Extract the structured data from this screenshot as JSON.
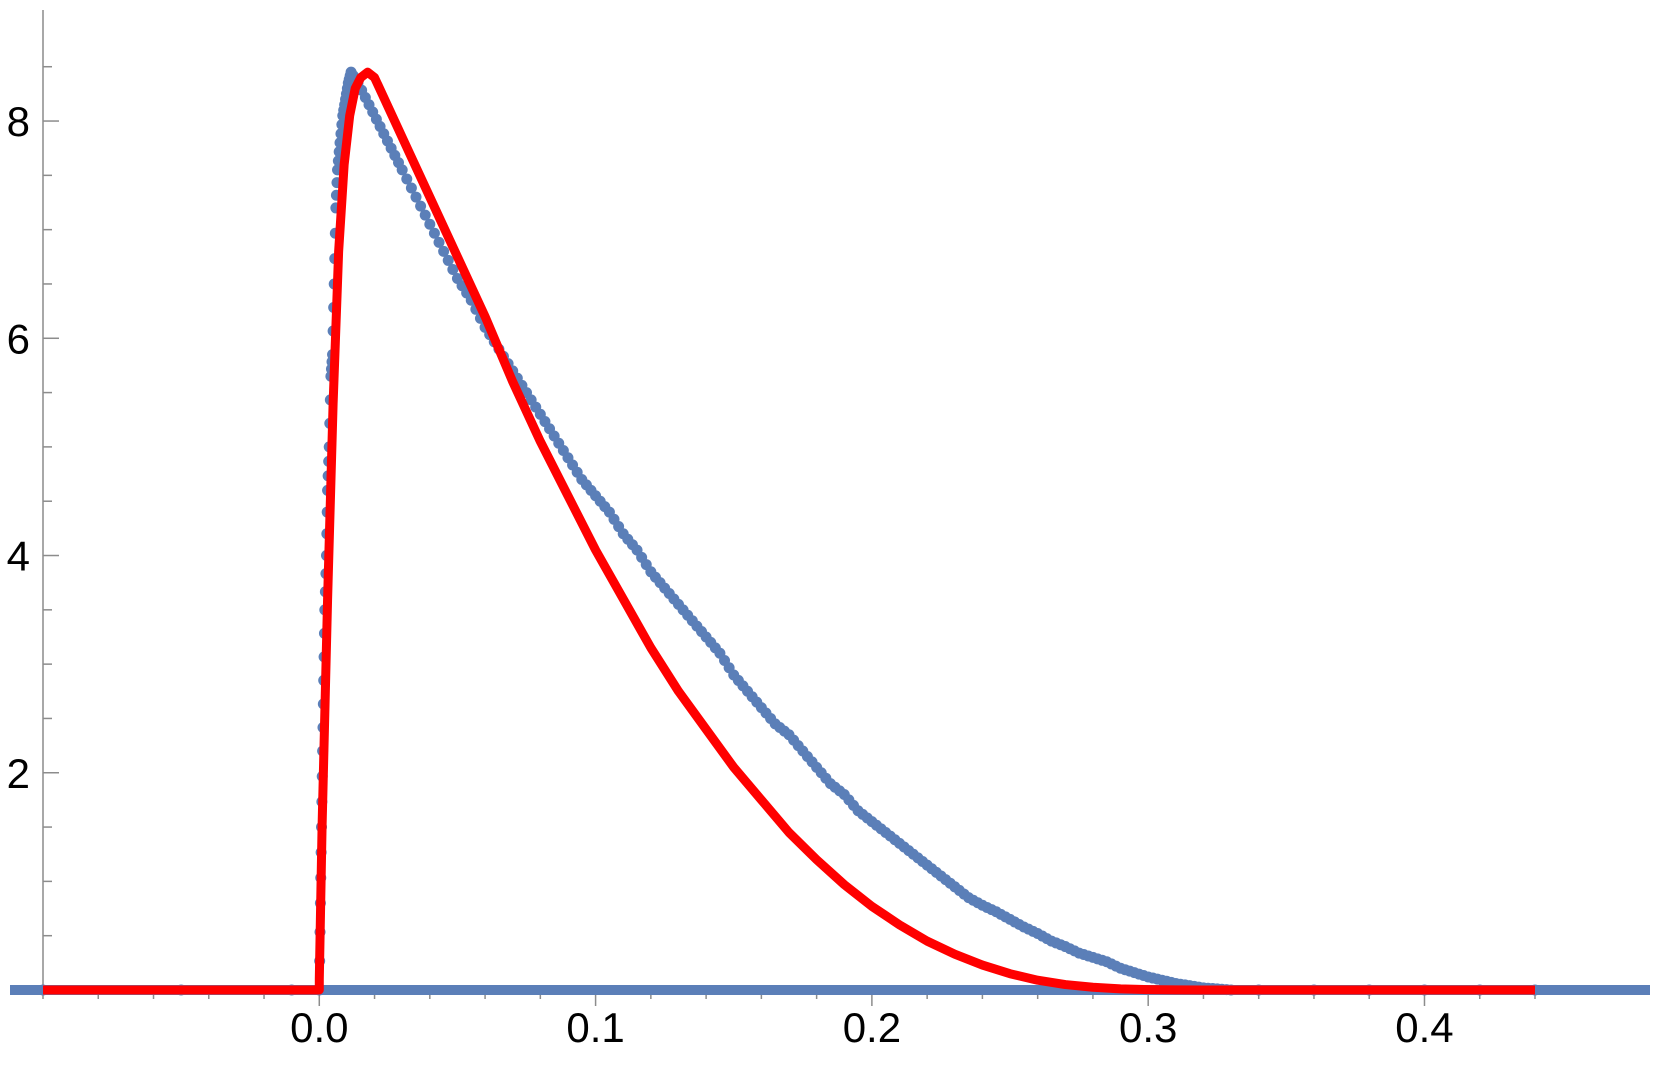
{
  "chart_data": {
    "type": "scatter",
    "title": "",
    "xlabel": "",
    "ylabel": "",
    "xlim": [
      -0.1,
      0.44
    ],
    "ylim": [
      0,
      8.7
    ],
    "x_major_ticks": [
      0.0,
      0.1,
      0.2,
      0.3,
      0.4
    ],
    "x_tick_labels": [
      "0.0",
      "0.1",
      "0.2",
      "0.3",
      "0.4"
    ],
    "y_major_ticks": [
      2,
      4,
      6,
      8
    ],
    "y_tick_labels": [
      "2",
      "4",
      "6",
      "8"
    ],
    "grid": false,
    "legend": "none",
    "colors": {
      "points": "#5b7fb8",
      "curve": "#ff0000"
    },
    "series": [
      {
        "kind": "scatter",
        "points": [
          [
            -0.1,
            0
          ],
          [
            -0.05,
            0
          ],
          [
            -0.01,
            0
          ],
          [
            0.0,
            0
          ],
          [
            0.0004,
            0.8
          ],
          [
            0.0008,
            1.5
          ],
          [
            0.0012,
            2.2
          ],
          [
            0.0016,
            2.85
          ],
          [
            0.002,
            3.5
          ],
          [
            0.0026,
            4.0
          ],
          [
            0.003,
            4.6
          ],
          [
            0.0036,
            5.0
          ],
          [
            0.0042,
            5.65
          ],
          [
            0.0048,
            5.85
          ],
          [
            0.0054,
            6.5
          ],
          [
            0.006,
            7.2
          ],
          [
            0.0066,
            7.55
          ],
          [
            0.0075,
            7.8
          ],
          [
            0.0085,
            8.05
          ],
          [
            0.0095,
            8.2
          ],
          [
            0.0105,
            8.35
          ],
          [
            0.0115,
            8.45
          ],
          [
            0.014,
            8.35
          ],
          [
            0.018,
            8.15
          ],
          [
            0.022,
            7.95
          ],
          [
            0.026,
            7.75
          ],
          [
            0.03,
            7.55
          ],
          [
            0.035,
            7.3
          ],
          [
            0.04,
            7.05
          ],
          [
            0.045,
            6.8
          ],
          [
            0.05,
            6.55
          ],
          [
            0.055,
            6.35
          ],
          [
            0.06,
            6.1
          ],
          [
            0.065,
            5.9
          ],
          [
            0.07,
            5.7
          ],
          [
            0.075,
            5.5
          ],
          [
            0.08,
            5.3
          ],
          [
            0.085,
            5.1
          ],
          [
            0.09,
            4.9
          ],
          [
            0.095,
            4.7
          ],
          [
            0.1,
            4.55
          ],
          [
            0.105,
            4.4
          ],
          [
            0.11,
            4.2
          ],
          [
            0.115,
            4.05
          ],
          [
            0.12,
            3.85
          ],
          [
            0.125,
            3.7
          ],
          [
            0.13,
            3.55
          ],
          [
            0.135,
            3.4
          ],
          [
            0.14,
            3.25
          ],
          [
            0.145,
            3.1
          ],
          [
            0.15,
            2.9
          ],
          [
            0.155,
            2.75
          ],
          [
            0.16,
            2.6
          ],
          [
            0.165,
            2.45
          ],
          [
            0.17,
            2.35
          ],
          [
            0.175,
            2.2
          ],
          [
            0.18,
            2.05
          ],
          [
            0.185,
            1.9
          ],
          [
            0.19,
            1.8
          ],
          [
            0.195,
            1.65
          ],
          [
            0.2,
            1.55
          ],
          [
            0.205,
            1.45
          ],
          [
            0.21,
            1.35
          ],
          [
            0.215,
            1.25
          ],
          [
            0.22,
            1.15
          ],
          [
            0.225,
            1.05
          ],
          [
            0.23,
            0.95
          ],
          [
            0.235,
            0.85
          ],
          [
            0.24,
            0.78
          ],
          [
            0.245,
            0.72
          ],
          [
            0.25,
            0.65
          ],
          [
            0.255,
            0.58
          ],
          [
            0.26,
            0.52
          ],
          [
            0.265,
            0.45
          ],
          [
            0.27,
            0.4
          ],
          [
            0.275,
            0.34
          ],
          [
            0.28,
            0.3
          ],
          [
            0.285,
            0.26
          ],
          [
            0.29,
            0.2
          ],
          [
            0.295,
            0.16
          ],
          [
            0.3,
            0.12
          ],
          [
            0.305,
            0.09
          ],
          [
            0.31,
            0.06
          ],
          [
            0.315,
            0.04
          ],
          [
            0.32,
            0.02
          ],
          [
            0.325,
            0.01
          ],
          [
            0.33,
            0.0
          ],
          [
            0.34,
            0
          ],
          [
            0.36,
            0
          ],
          [
            0.38,
            0
          ],
          [
            0.4,
            0
          ],
          [
            0.42,
            0
          ],
          [
            0.44,
            0
          ]
        ]
      },
      {
        "kind": "line",
        "points": [
          [
            -0.1,
            0
          ],
          [
            0.0,
            0
          ],
          [
            0.0,
            0.1
          ],
          [
            0.001,
            1.5
          ],
          [
            0.003,
            3.6
          ],
          [
            0.005,
            5.4
          ],
          [
            0.007,
            6.8
          ],
          [
            0.009,
            7.6
          ],
          [
            0.011,
            8.05
          ],
          [
            0.013,
            8.3
          ],
          [
            0.015,
            8.4
          ],
          [
            0.0175,
            8.45
          ],
          [
            0.02,
            8.4
          ],
          [
            0.03,
            7.85
          ],
          [
            0.04,
            7.3
          ],
          [
            0.05,
            6.75
          ],
          [
            0.06,
            6.2
          ],
          [
            0.07,
            5.6
          ],
          [
            0.08,
            5.05
          ],
          [
            0.09,
            4.55
          ],
          [
            0.1,
            4.05
          ],
          [
            0.11,
            3.6
          ],
          [
            0.12,
            3.15
          ],
          [
            0.13,
            2.75
          ],
          [
            0.14,
            2.4
          ],
          [
            0.15,
            2.05
          ],
          [
            0.16,
            1.75
          ],
          [
            0.17,
            1.45
          ],
          [
            0.18,
            1.2
          ],
          [
            0.19,
            0.97
          ],
          [
            0.2,
            0.77
          ],
          [
            0.21,
            0.6
          ],
          [
            0.22,
            0.45
          ],
          [
            0.23,
            0.33
          ],
          [
            0.24,
            0.23
          ],
          [
            0.25,
            0.15
          ],
          [
            0.26,
            0.09
          ],
          [
            0.27,
            0.05
          ],
          [
            0.28,
            0.025
          ],
          [
            0.29,
            0.01
          ],
          [
            0.3,
            0.004
          ],
          [
            0.31,
            0.001
          ],
          [
            0.32,
            0.0
          ],
          [
            0.33,
            0.0
          ],
          [
            0.44,
            0.0
          ]
        ]
      }
    ]
  }
}
